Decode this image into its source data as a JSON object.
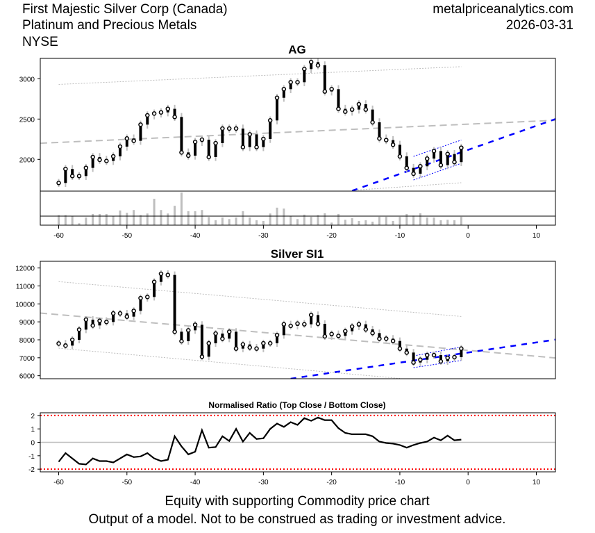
{
  "header": {
    "company": "First Majestic Silver Corp (Canada)",
    "sector": "Platinum and Precious Metals",
    "exchange": "NYSE",
    "site": "metalpriceanalytics.com",
    "date": "2026-03-31"
  },
  "footer": {
    "line1": "Equity with supporting Commodity price chart",
    "line2": "Output of a model. Not to be construed as trading or investment advice."
  },
  "colors": {
    "bar": "#000000",
    "wick": "#bebebe",
    "trend": "#bebebe",
    "channel": "#0000ff",
    "band": "#ff0000"
  },
  "chart_data": [
    {
      "type": "bar",
      "id": "top",
      "title": "AG",
      "x_start": -60,
      "xlim": [
        -62.7,
        12.8
      ],
      "ylim": [
        1606,
        3253
      ],
      "yticks": [
        2000,
        2500,
        3000
      ],
      "xticks": [
        -60,
        -50,
        -40,
        -30,
        -20,
        -10,
        0,
        10
      ],
      "close": [
        1707,
        1880,
        1793,
        1793,
        1894,
        2029,
        1994,
        1980,
        2037,
        2158,
        2259,
        2230,
        2431,
        2546,
        2569,
        2583,
        2627,
        2526,
        2086,
        2046,
        2216,
        2244,
        2029,
        2201,
        2382,
        2382,
        2382,
        2152,
        2310,
        2152,
        2253,
        2483,
        2764,
        2871,
        2957,
        2957,
        3121,
        3207,
        3167,
        2842,
        2871,
        2627,
        2592,
        2618,
        2684,
        2618,
        2460,
        2259,
        2239,
        2181,
        2037,
        1894,
        1822,
        1914,
        2009,
        2103,
        1928,
        2066,
        1966,
        2144
      ],
      "volume": [
        43,
        43,
        38,
        8,
        33,
        48,
        48,
        48,
        38,
        63,
        53,
        65,
        43,
        50,
        113,
        65,
        50,
        83,
        140,
        60,
        60,
        65,
        35,
        21,
        33,
        26,
        33,
        60,
        33,
        21,
        18,
        50,
        75,
        71,
        38,
        26,
        45,
        36,
        43,
        51,
        11,
        48,
        23,
        30,
        18,
        21,
        15,
        36,
        36,
        18,
        36,
        48,
        41,
        51,
        33,
        33,
        21,
        23,
        21,
        36
      ],
      "lines": [
        {
          "name": "regression-line",
          "style": "dash-gray",
          "x1": -62.7,
          "y1": 2200,
          "x2": 12.8,
          "y2": 2485
        },
        {
          "name": "upper-band",
          "style": "dot-gray",
          "x1": -60,
          "y1": 2930,
          "x2": -1,
          "y2": 3150
        },
        {
          "name": "lower-band",
          "style": "dot-gray",
          "x1": -17,
          "y1": 1615,
          "x2": -1,
          "y2": 1710
        },
        {
          "name": "short-trend-line",
          "style": "dash-blue",
          "x1": -17,
          "y1": 1610,
          "x2": 12.8,
          "y2": 2500
        },
        {
          "name": "channel-upper",
          "style": "dot-blue",
          "x1": -8,
          "y1": 2037,
          "x2": -1,
          "y2": 2239
        },
        {
          "name": "channel-lower",
          "style": "dot-blue",
          "x1": -8,
          "y1": 1744,
          "x2": -1,
          "y2": 1951
        }
      ]
    },
    {
      "type": "bar",
      "id": "mid",
      "title": "Silver SI1",
      "x_start": -60,
      "xlim": [
        -62.7,
        12.8
      ],
      "ylim": [
        5832,
        12373
      ],
      "yticks": [
        6000,
        7000,
        8000,
        9000,
        10000,
        11000,
        12000
      ],
      "close": [
        7793,
        7677,
        8000,
        8567,
        9122,
        8800,
        9057,
        8993,
        9470,
        9470,
        9290,
        9612,
        10322,
        10386,
        11225,
        11676,
        11612,
        8451,
        7922,
        8528,
        8838,
        7058,
        7806,
        8348,
        8064,
        8451,
        7509,
        7742,
        7574,
        7509,
        7806,
        7806,
        8257,
        8864,
        8773,
        8903,
        8864,
        9380,
        8890,
        8193,
        8322,
        8219,
        8477,
        8735,
        8864,
        8580,
        8374,
        8064,
        8064,
        7935,
        7509,
        7290,
        6735,
        6890,
        7148,
        7148,
        6800,
        6993,
        7032,
        7509
      ],
      "lines": [
        {
          "name": "regression-line",
          "style": "dash-gray",
          "x1": -62.7,
          "y1": 9490,
          "x2": 12.8,
          "y2": 6990
        },
        {
          "name": "upper-band",
          "style": "dot-gray",
          "x1": -60,
          "y1": 11240,
          "x2": -1,
          "y2": 9300
        },
        {
          "name": "lower-band",
          "style": "dot-gray",
          "x1": -60,
          "y1": 7530,
          "x2": -10,
          "y2": 5850
        },
        {
          "name": "short-trend-line",
          "style": "dash-blue",
          "x1": -26,
          "y1": 5832,
          "x2": 12.8,
          "y2": 8010
        },
        {
          "name": "channel-upper",
          "style": "dot-blue",
          "x1": -8,
          "y1": 7100,
          "x2": -1,
          "y2": 7600
        },
        {
          "name": "channel-lower",
          "style": "dot-blue",
          "x1": -8,
          "y1": 6450,
          "x2": -1,
          "y2": 6850
        }
      ]
    },
    {
      "type": "line",
      "id": "ratio",
      "title": "Normalised Ratio (Top Close / Bottom Close)",
      "x_start": -60,
      "xlim": [
        -62.7,
        12.8
      ],
      "ylim": [
        -2.2,
        2.2
      ],
      "yticks": [
        -2,
        -1,
        0,
        1,
        2
      ],
      "xticks": [
        -60,
        -50,
        -40,
        -30,
        -20,
        -10,
        0,
        10
      ],
      "bands": [
        -2,
        2
      ],
      "values": [
        -1.45,
        -0.8,
        -1.2,
        -1.6,
        -1.65,
        -1.2,
        -1.4,
        -1.4,
        -1.5,
        -1.2,
        -0.9,
        -1.1,
        -1.05,
        -0.8,
        -1.2,
        -1.4,
        -1.3,
        0.45,
        -0.3,
        -0.9,
        -0.7,
        0.9,
        -0.4,
        -0.35,
        0.45,
        0.1,
        1.0,
        0.05,
        0.7,
        0.25,
        0.3,
        1.0,
        1.4,
        1.15,
        1.5,
        1.3,
        1.8,
        1.6,
        1.85,
        1.65,
        1.65,
        1.05,
        0.7,
        0.6,
        0.6,
        0.6,
        0.45,
        0.05,
        -0.05,
        -0.1,
        -0.2,
        -0.4,
        -0.2,
        -0.05,
        0.05,
        0.35,
        0.15,
        0.5,
        0.15,
        0.2
      ]
    }
  ]
}
